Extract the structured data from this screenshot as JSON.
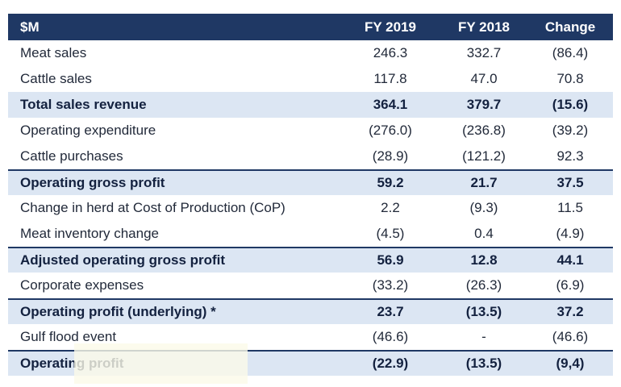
{
  "header": {
    "label": "$M",
    "col1": "FY 2019",
    "col2": "FY 2018",
    "col3": "Change"
  },
  "rows": [
    {
      "label": "Meat sales",
      "fy2019": "246.3",
      "fy2018": "332.7",
      "change": "(86.4)",
      "bold": false,
      "topline": false
    },
    {
      "label": "Cattle sales",
      "fy2019": "117.8",
      "fy2018": "47.0",
      "change": "70.8",
      "bold": false,
      "topline": false
    },
    {
      "label": "Total sales revenue",
      "fy2019": "364.1",
      "fy2018": "379.7",
      "change": "(15.6)",
      "bold": true,
      "topline": false
    },
    {
      "label": "Operating expenditure",
      "fy2019": "(276.0)",
      "fy2018": "(236.8)",
      "change": "(39.2)",
      "bold": false,
      "topline": false
    },
    {
      "label": "Cattle purchases",
      "fy2019": "(28.9)",
      "fy2018": "(121.2)",
      "change": "92.3",
      "bold": false,
      "topline": false
    },
    {
      "label": "Operating gross profit",
      "fy2019": "59.2",
      "fy2018": "21.7",
      "change": "37.5",
      "bold": true,
      "topline": true
    },
    {
      "label": "Change in herd at Cost of Production (CoP)",
      "fy2019": "2.2",
      "fy2018": "(9.3)",
      "change": "11.5",
      "bold": false,
      "topline": false
    },
    {
      "label": "Meat inventory change",
      "fy2019": "(4.5)",
      "fy2018": "0.4",
      "change": "(4.9)",
      "bold": false,
      "topline": false
    },
    {
      "label": "Adjusted operating gross profit",
      "fy2019": "56.9",
      "fy2018": "12.8",
      "change": "44.1",
      "bold": true,
      "topline": true
    },
    {
      "label": "Corporate expenses",
      "fy2019": "(33.2)",
      "fy2018": "(26.3)",
      "change": "(6.9)",
      "bold": false,
      "topline": false
    },
    {
      "label": "Operating profit (underlying) *",
      "fy2019": "23.7",
      "fy2018": "(13.5)",
      "change": "37.2",
      "bold": true,
      "topline": true
    },
    {
      "label": "Gulf flood event",
      "fy2019": "(46.6)",
      "fy2018": "-",
      "change": "(46.6)",
      "bold": false,
      "topline": false
    },
    {
      "label": "Operating profit",
      "fy2019": "(22.9)",
      "fy2018": "(13.5)",
      "change": "(9,4)",
      "bold": true,
      "topline": true
    }
  ],
  "colors": {
    "header_bg": "#1f3864",
    "highlight_bg": "#dce6f3",
    "text": "#222a3a"
  }
}
